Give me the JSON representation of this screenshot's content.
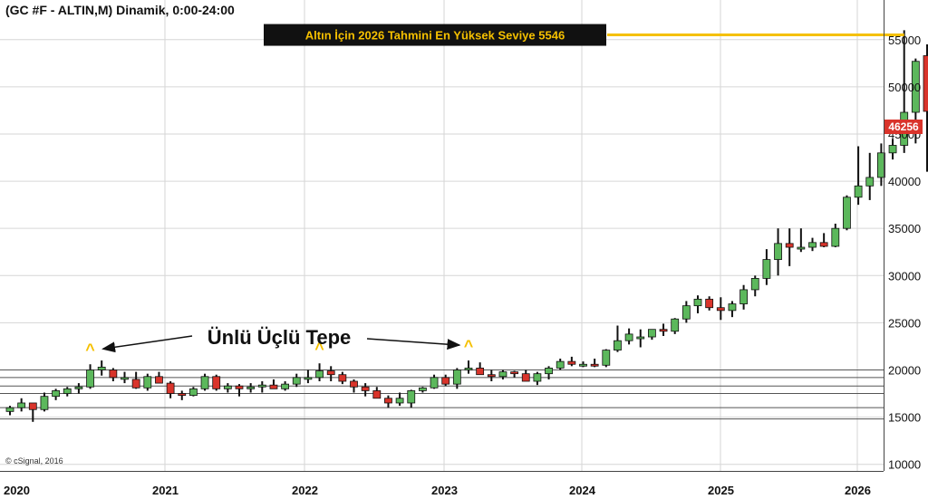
{
  "chart_data": {
    "type": "candlestick",
    "title": "(GC #F - ALTIN,M) Dinamik, 0:00-24:00",
    "copyright": "© cSignal, 2016",
    "y_ticks": [
      10000,
      15000,
      20000,
      25000,
      30000,
      35000,
      40000,
      45000,
      50000,
      55000
    ],
    "ylim": [
      9300,
      59200
    ],
    "x_ticks": [
      "2020",
      "2021",
      "2022",
      "2023",
      "2024",
      "2025",
      "2026"
    ],
    "last_price": "46256",
    "forecast_label": "Altın İçin 2026 Tahmini En Yüksek Seviye 5546",
    "forecast_level": 55500,
    "triple_top_label": "Ünlü Üçlü Tepe",
    "triple_top_marker": "^",
    "triple_top_indices": [
      7,
      27,
      40
    ],
    "support_levels": [
      14800,
      16000,
      17500,
      18300,
      19200,
      20000
    ],
    "colors": {
      "up": "#5cb85c",
      "down": "#d9342b",
      "wick": "#111111",
      "forecast": "#f5c000",
      "grid": "#d6d6d6"
    },
    "candles": [
      [
        15600,
        16200,
        15200,
        16000
      ],
      [
        16000,
        17000,
        15600,
        16500
      ],
      [
        16500,
        16500,
        14500,
        15800
      ],
      [
        15800,
        17600,
        15600,
        17200
      ],
      [
        17200,
        18000,
        16800,
        17800
      ],
      [
        17500,
        18200,
        17200,
        18000
      ],
      [
        18000,
        18600,
        17500,
        18200
      ],
      [
        18200,
        20600,
        18000,
        20000
      ],
      [
        20000,
        21000,
        19400,
        20300
      ],
      [
        20000,
        20200,
        18800,
        19200
      ],
      [
        19200,
        19800,
        18600,
        19200
      ],
      [
        19000,
        19800,
        18000,
        18100
      ],
      [
        18100,
        19600,
        17800,
        19300
      ],
      [
        19300,
        19800,
        18600,
        18600
      ],
      [
        18600,
        18800,
        17000,
        17500
      ],
      [
        17500,
        17800,
        16800,
        17300
      ],
      [
        17300,
        18200,
        17200,
        18000
      ],
      [
        18000,
        19600,
        17800,
        19300
      ],
      [
        19300,
        19500,
        17800,
        18000
      ],
      [
        18000,
        18600,
        17600,
        18300
      ],
      [
        18300,
        18500,
        17200,
        18000
      ],
      [
        18000,
        18600,
        17600,
        18200
      ],
      [
        18200,
        18800,
        17600,
        18400
      ],
      [
        18400,
        19000,
        18000,
        18000
      ],
      [
        18000,
        18800,
        17800,
        18500
      ],
      [
        18500,
        19600,
        18200,
        19200
      ],
      [
        19200,
        20000,
        18600,
        19200
      ],
      [
        19200,
        20700,
        18800,
        19900
      ],
      [
        19900,
        20400,
        18800,
        19500
      ],
      [
        19500,
        19800,
        18500,
        18800
      ],
      [
        18800,
        19000,
        17600,
        18200
      ],
      [
        18200,
        18600,
        17200,
        17800
      ],
      [
        17800,
        18200,
        17000,
        17000
      ],
      [
        17000,
        17300,
        16000,
        16500
      ],
      [
        16500,
        17600,
        16200,
        17000
      ],
      [
        16500,
        17900,
        16000,
        17800
      ],
      [
        17800,
        18200,
        17600,
        18100
      ],
      [
        18100,
        19500,
        18000,
        19200
      ],
      [
        19200,
        19500,
        18300,
        18500
      ],
      [
        18500,
        20200,
        18000,
        20000
      ],
      [
        20000,
        21000,
        19600,
        20200
      ],
      [
        20200,
        20800,
        19500,
        19500
      ],
      [
        19500,
        20000,
        18800,
        19300
      ],
      [
        19300,
        20000,
        19000,
        19800
      ],
      [
        19800,
        19900,
        19200,
        19600
      ],
      [
        19600,
        20000,
        18800,
        18800
      ],
      [
        18800,
        19800,
        18400,
        19600
      ],
      [
        19600,
        20400,
        19000,
        20200
      ],
      [
        20200,
        21200,
        20000,
        20900
      ],
      [
        20900,
        21400,
        20400,
        20600
      ],
      [
        20600,
        20900,
        20300,
        20600
      ],
      [
        20600,
        21200,
        20300,
        20500
      ],
      [
        20500,
        22200,
        20300,
        22100
      ],
      [
        22100,
        24700,
        21900,
        23100
      ],
      [
        23100,
        24400,
        22700,
        23800
      ],
      [
        23500,
        24300,
        22400,
        23500
      ],
      [
        23500,
        24300,
        23200,
        24300
      ],
      [
        24300,
        24900,
        23600,
        24100
      ],
      [
        24100,
        25500,
        23800,
        25400
      ],
      [
        25400,
        27300,
        25000,
        26800
      ],
      [
        26800,
        27900,
        26000,
        27500
      ],
      [
        27500,
        27800,
        26300,
        26600
      ],
      [
        26600,
        27700,
        25300,
        26300
      ],
      [
        26300,
        27300,
        25600,
        27000
      ],
      [
        27000,
        29000,
        26400,
        28500
      ],
      [
        28500,
        30000,
        27800,
        29700
      ],
      [
        29700,
        32800,
        29000,
        31700
      ],
      [
        31700,
        35000,
        30000,
        33400
      ],
      [
        33400,
        35000,
        31000,
        33000
      ],
      [
        33000,
        35000,
        32500,
        33000
      ],
      [
        33000,
        34000,
        32600,
        33500
      ],
      [
        33500,
        34500,
        33000,
        33100
      ],
      [
        33100,
        35500,
        33000,
        35000
      ],
      [
        35000,
        38500,
        34800,
        38300
      ],
      [
        38300,
        43700,
        37500,
        39500
      ],
      [
        39500,
        43000,
        38000,
        40400
      ],
      [
        40400,
        44000,
        39500,
        43000
      ],
      [
        43000,
        44500,
        42300,
        43800
      ],
      [
        43800,
        56000,
        43000,
        47300
      ],
      [
        47300,
        53000,
        44000,
        52700
      ],
      [
        53300,
        54500,
        41000,
        47400
      ],
      [
        47400,
        49000,
        46200,
        46400
      ],
      [
        46400,
        47300,
        45000,
        46300
      ]
    ]
  }
}
